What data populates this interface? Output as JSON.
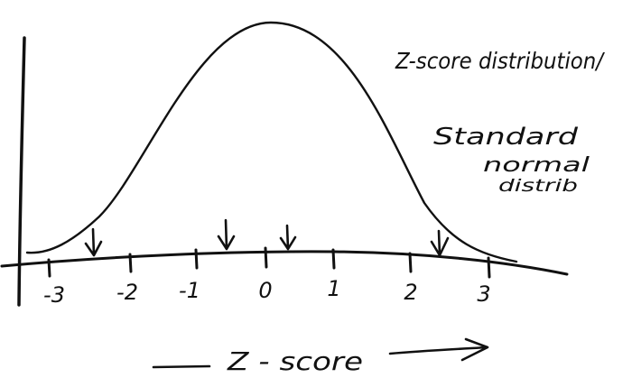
{
  "diagram": {
    "curve_label": "Z-score distribution/",
    "alt_label_1": "Standard",
    "alt_label_2": "normal",
    "alt_label_3": "distrib",
    "axis_title": "Z - score",
    "ticks": [
      "-3",
      "-2",
      "-1",
      "0",
      "1",
      "2",
      "3"
    ]
  }
}
